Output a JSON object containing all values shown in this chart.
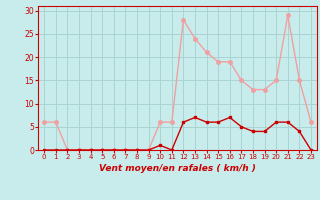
{
  "title": "",
  "xlabel": "Vent moyen/en rafales ( km/h )",
  "bg_color": "#c8ecec",
  "grid_color": "#aad4d4",
  "line_color_avg": "#cc0000",
  "line_color_gust": "#f0a0a0",
  "marker_size": 2.5,
  "line_width": 1.0,
  "xlim": [
    -0.5,
    23.5
  ],
  "ylim": [
    0,
    31
  ],
  "yticks": [
    0,
    5,
    10,
    15,
    20,
    25,
    30
  ],
  "xticks": [
    0,
    1,
    2,
    3,
    4,
    5,
    6,
    7,
    8,
    9,
    10,
    11,
    12,
    13,
    14,
    15,
    16,
    17,
    18,
    19,
    20,
    21,
    22,
    23
  ],
  "hours": [
    0,
    1,
    2,
    3,
    4,
    5,
    6,
    7,
    8,
    9,
    10,
    11,
    12,
    13,
    14,
    15,
    16,
    17,
    18,
    19,
    20,
    21,
    22,
    23
  ],
  "avg_wind": [
    0,
    0,
    0,
    0,
    0,
    0,
    0,
    0,
    0,
    0,
    1,
    0,
    6,
    7,
    6,
    6,
    7,
    5,
    4,
    4,
    6,
    6,
    4,
    0
  ],
  "gust_wind": [
    6,
    6,
    0,
    0,
    0,
    0,
    0,
    0,
    0,
    0,
    6,
    6,
    28,
    24,
    21,
    19,
    19,
    15,
    13,
    13,
    15,
    29,
    15,
    6
  ]
}
